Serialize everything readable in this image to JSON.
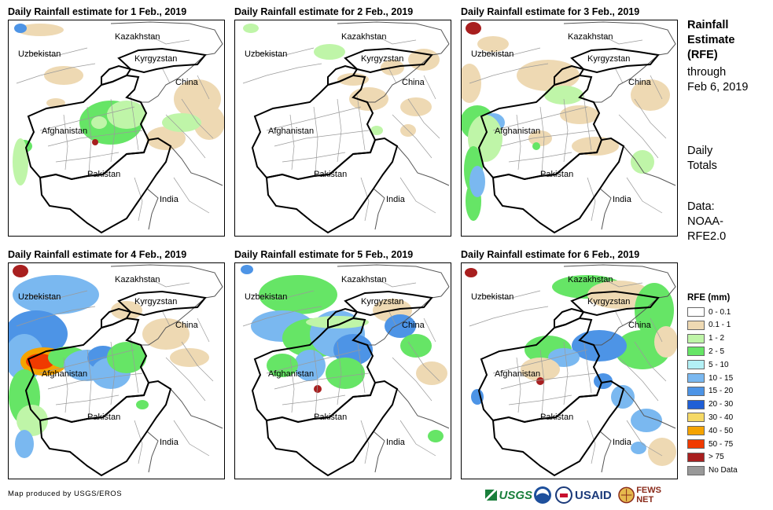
{
  "panels": [
    {
      "title": "Daily Rainfall estimate for 1 Feb., 2019"
    },
    {
      "title": "Daily Rainfall estimate for 2 Feb., 2019"
    },
    {
      "title": "Daily Rainfall estimate for 3 Feb., 2019"
    },
    {
      "title": "Daily Rainfall estimate for 4 Feb., 2019"
    },
    {
      "title": "Daily Rainfall estimate for 5 Feb., 2019"
    },
    {
      "title": "Daily Rainfall estimate for 6 Feb., 2019"
    }
  ],
  "countries": {
    "kazakhstan": "Kazakhstan",
    "uzbekistan": "Uzbekistan",
    "kyrgyzstan": "Kyrgyzstan",
    "china": "China",
    "afghanistan": "Afghanistan",
    "pakistan": "Pakistan",
    "india": "India"
  },
  "sidebar": {
    "heading_lines": [
      "Rainfall",
      "Estimate",
      "(RFE)"
    ],
    "through_lines": [
      "through",
      "Feb 6, 2019"
    ],
    "totals_lines": [
      "Daily",
      "Totals"
    ],
    "data_lines": [
      "Data:",
      "NOAA-",
      "RFE2.0"
    ]
  },
  "legend": {
    "title": "RFE (mm)",
    "items": [
      {
        "label": "0 - 0.1",
        "color": "#ffffff"
      },
      {
        "label": "0.1 - 1",
        "color": "#eed9b3"
      },
      {
        "label": "1 - 2",
        "color": "#bff5a8"
      },
      {
        "label": "2 - 5",
        "color": "#66e566"
      },
      {
        "label": "5 - 10",
        "color": "#b3f0f5"
      },
      {
        "label": "10 - 15",
        "color": "#7ab8f0"
      },
      {
        "label": "15 - 20",
        "color": "#4d94e6"
      },
      {
        "label": "20 - 30",
        "color": "#1f5fd6"
      },
      {
        "label": "30 - 40",
        "color": "#f5d966"
      },
      {
        "label": "40 - 50",
        "color": "#f5a300"
      },
      {
        "label": "50 - 75",
        "color": "#f03a00"
      },
      {
        "label": "> 75",
        "color": "#a81f1f"
      },
      {
        "label": "No Data",
        "color": "#999999"
      }
    ]
  },
  "credit": "Map produced by USGS/EROS",
  "logos": {
    "usgs": "USGS",
    "usaid": "USAID",
    "fewsnet": "FEWS NET"
  }
}
